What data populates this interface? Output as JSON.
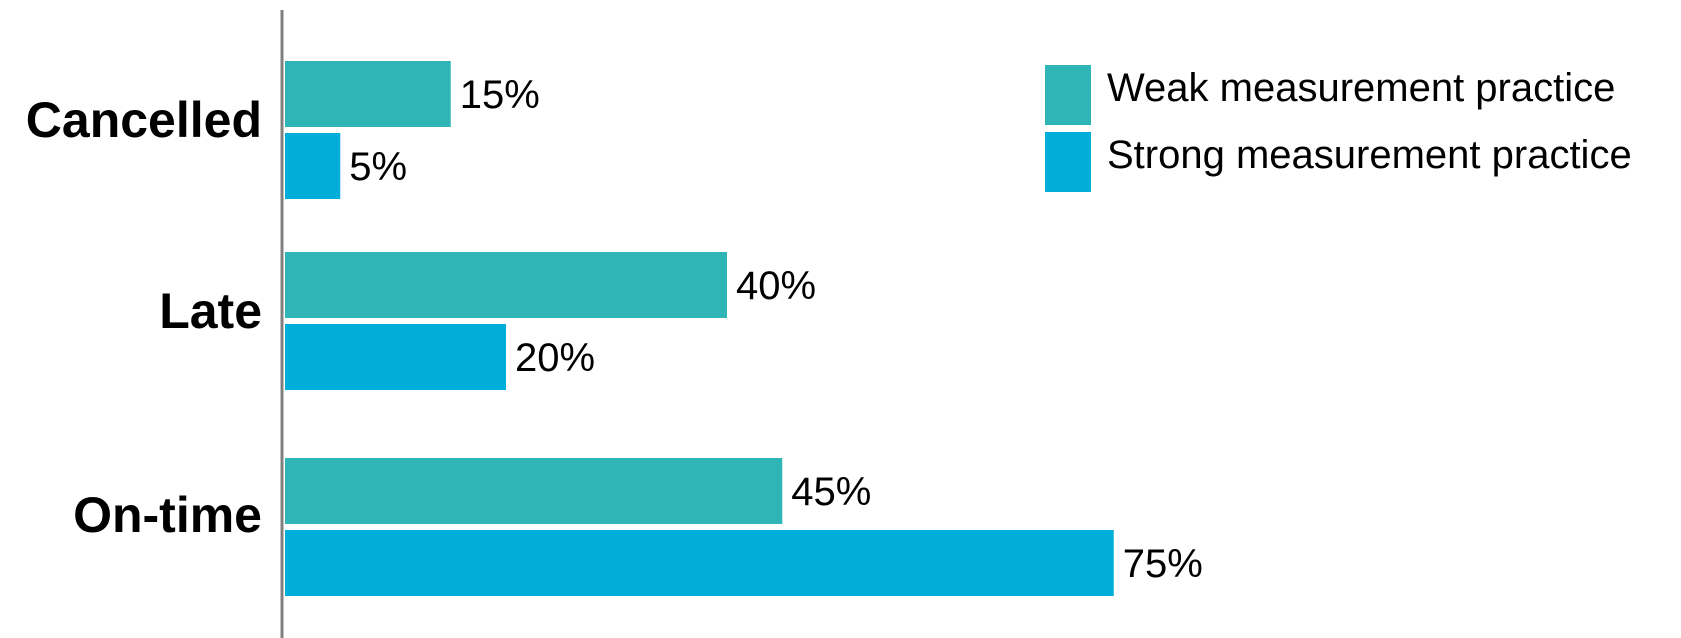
{
  "chart_data": {
    "type": "bar",
    "orientation": "horizontal",
    "categories": [
      "Cancelled",
      "Late",
      "On-time"
    ],
    "series": [
      {
        "name": "Weak measurement practice",
        "values": [
          15,
          40,
          45
        ],
        "labels": [
          "15%",
          "40%",
          "45%"
        ],
        "color": "#2fb5b5"
      },
      {
        "name": "Strong measurement practice",
        "values": [
          5,
          20,
          75
        ],
        "labels": [
          "5%",
          "20%",
          "75%"
        ],
        "color": "#00aed9"
      }
    ],
    "unit": "%",
    "xlim": [
      0,
      100
    ],
    "grid": false,
    "legend_position": "top-right"
  }
}
